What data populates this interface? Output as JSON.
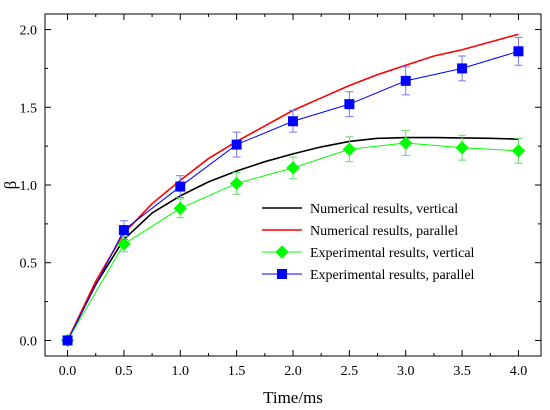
{
  "chart_data": {
    "type": "line",
    "xlabel": "Time/ms",
    "ylabel": "β",
    "xlim": [
      -0.2,
      4.2
    ],
    "ylim": [
      -0.1,
      2.1
    ],
    "x_ticks": [
      "0.0",
      "0.5",
      "1.0",
      "1.5",
      "2.0",
      "2.5",
      "3.0",
      "3.5",
      "4.0"
    ],
    "y_ticks": [
      "0.0",
      "0.5",
      "1.0",
      "1.5",
      "2.0"
    ],
    "grid": false,
    "legend_position": "lower-right",
    "series": [
      {
        "name": "Numerical results, vertical",
        "color": "#000000",
        "style": "line",
        "x": [
          0,
          0.25,
          0.5,
          0.75,
          1.0,
          1.25,
          1.5,
          1.75,
          2.0,
          2.25,
          2.5,
          2.75,
          3.0,
          3.25,
          3.5,
          3.75,
          4.0
        ],
        "y": [
          0,
          0.36,
          0.65,
          0.82,
          0.93,
          1.02,
          1.09,
          1.15,
          1.2,
          1.245,
          1.28,
          1.3,
          1.305,
          1.305,
          1.303,
          1.3,
          1.295
        ]
      },
      {
        "name": "Numerical results, parallel",
        "color": "#ff0000",
        "style": "line",
        "x": [
          0,
          0.25,
          0.5,
          0.75,
          1.0,
          1.25,
          1.5,
          1.75,
          2.0,
          2.25,
          2.5,
          2.75,
          3.0,
          3.25,
          3.5,
          3.75,
          4.0
        ],
        "y": [
          0,
          0.38,
          0.69,
          0.88,
          1.03,
          1.17,
          1.28,
          1.38,
          1.48,
          1.56,
          1.64,
          1.71,
          1.77,
          1.83,
          1.87,
          1.92,
          1.97
        ]
      },
      {
        "name": "Experimental results, vertical",
        "color": "#00ff00",
        "style": "line-marker",
        "marker": "diamond",
        "x": [
          0,
          0.5,
          1.0,
          1.5,
          2.0,
          2.5,
          3.0,
          3.5,
          4.0
        ],
        "y": [
          0.0,
          0.62,
          0.85,
          1.01,
          1.11,
          1.23,
          1.27,
          1.24,
          1.22
        ],
        "error": [
          0.0,
          0.05,
          0.06,
          0.07,
          0.07,
          0.08,
          0.08,
          0.08,
          0.08
        ]
      },
      {
        "name": "Experimental results, parallel",
        "color": "#0000ff",
        "style": "line-marker",
        "marker": "square",
        "x": [
          0,
          0.5,
          1.0,
          1.5,
          2.0,
          2.5,
          3.0,
          3.5,
          4.0
        ],
        "y": [
          0.0,
          0.71,
          0.99,
          1.26,
          1.41,
          1.52,
          1.67,
          1.75,
          1.86
        ],
        "error": [
          0.0,
          0.06,
          0.07,
          0.08,
          0.07,
          0.08,
          0.09,
          0.08,
          0.09
        ]
      }
    ]
  }
}
